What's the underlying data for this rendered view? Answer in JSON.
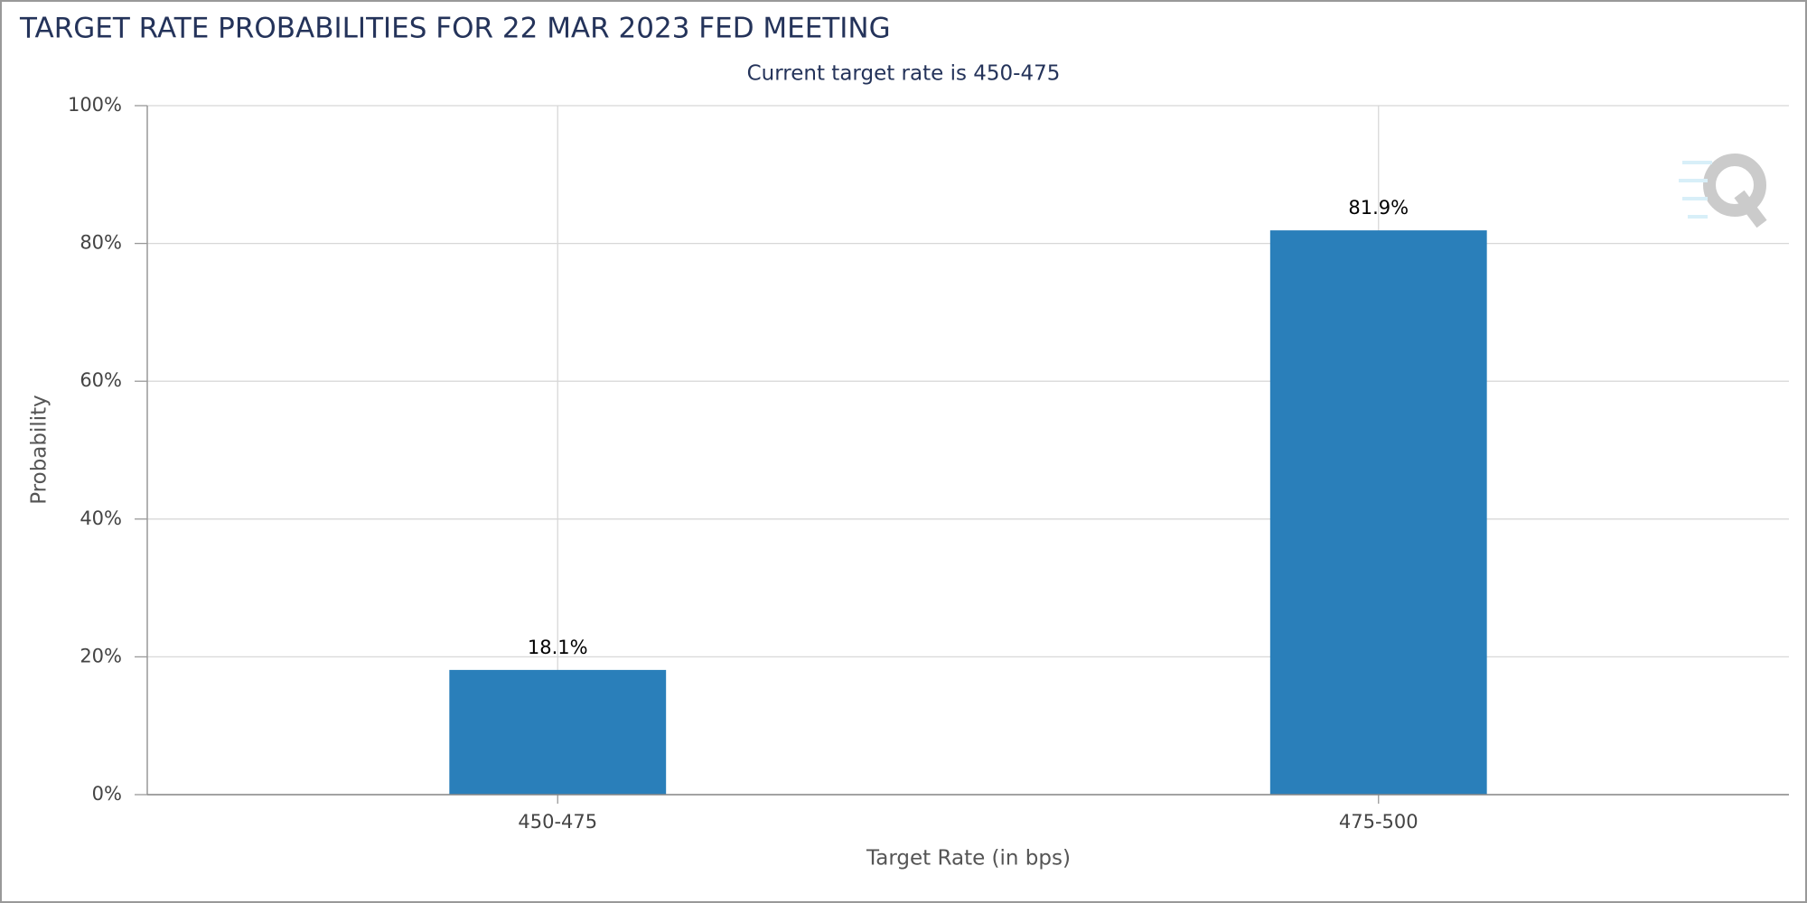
{
  "chart_data": {
    "type": "bar",
    "title": "TARGET RATE PROBABILITIES FOR 22 MAR 2023 FED MEETING",
    "subtitle": "Current target rate is 450-475",
    "x_label": "Target Rate (in bps)",
    "y_label": "Probability",
    "categories": [
      "450-475",
      "475-500"
    ],
    "values": [
      18.1,
      81.9
    ],
    "value_labels": [
      "18.1%",
      "81.9%"
    ],
    "color": "#2a7fba",
    "ylim": [
      0,
      100
    ],
    "yticks": [
      {
        "value": 0,
        "label": "0%"
      },
      {
        "value": 20,
        "label": "20%"
      },
      {
        "value": 40,
        "label": "40%"
      },
      {
        "value": 60,
        "label": "60%"
      },
      {
        "value": 80,
        "label": "80%"
      },
      {
        "value": 100,
        "label": "100%"
      }
    ],
    "grid": true
  }
}
